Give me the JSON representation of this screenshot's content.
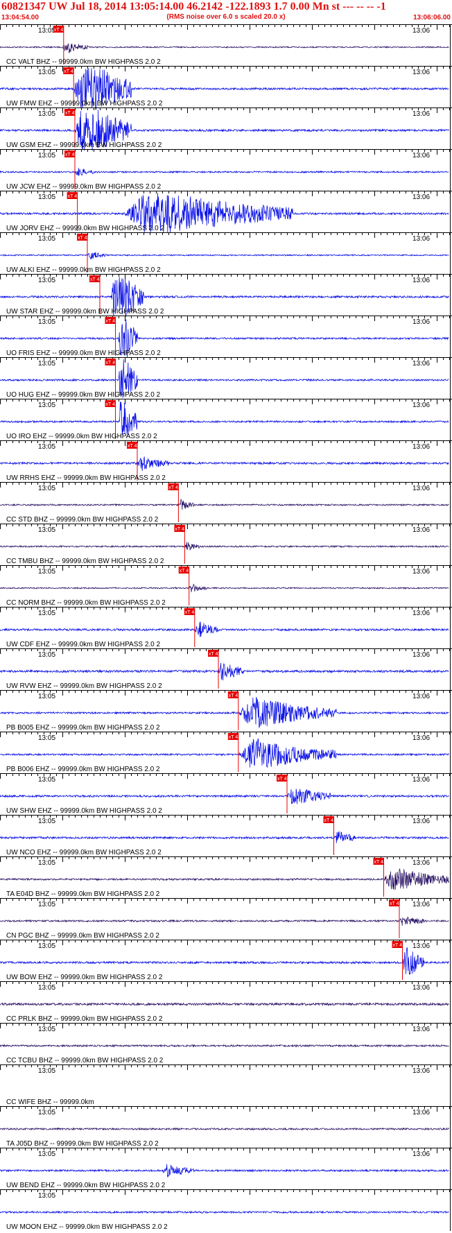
{
  "header": {
    "title": "60821347 UW Jul 18, 2014 13:05:14.00   46.2142 -122.1893  1.7 0.00 Mn st --- -- --   -1",
    "subtitle": "(RMS noise over 6.0 s scaled 20.0 x)",
    "start_time": "13:04:54.00",
    "end_time": "13:06:06.00"
  },
  "colors": {
    "trace_blue": "#0a10e6",
    "trace_dark": "#2a1466",
    "pick_red": "#e60000",
    "header_red": "#e01010",
    "axis": "#000000"
  },
  "chart_data": {
    "type": "line",
    "title": "60821347 UW Jul 18, 2014 13:05:14.00   46.2142 -122.1893  1.7 0.00 Mn st --- -- --   -1",
    "subtitle": "(RMS noise over 6.0 s scaled 20.0 x)",
    "x_start": "13:04:54.00",
    "x_end": "13:06:06.00",
    "xlim_seconds": [
      0,
      72
    ],
    "grid": false,
    "pick_label": "xT 4",
    "traces": [
      {
        "label": "CC VALT BHZ -- 99999.0km BW  HIGHPASS  2.0  2",
        "left_tick": "13:05",
        "right_tick": "13:06",
        "color": "dark",
        "pick_s": 10.2,
        "event_start_s": 10.0,
        "event_end_s": 14.0,
        "event_amp": 0.45,
        "noise": 0.1
      },
      {
        "label": "UW FMW EHZ -- 99999.0km BW  HIGHPASS  2.0  2",
        "left_tick": "13:05",
        "right_tick": "13:06",
        "color": "blue",
        "pick_s": 11.8,
        "event_start_s": 11.8,
        "event_end_s": 21.0,
        "event_amp": 2.6,
        "noise": 0.16
      },
      {
        "label": "UW GSM EHZ -- 99999.0km BW  HIGHPASS  2.0  2",
        "left_tick": "13:05",
        "right_tick": "13:06",
        "color": "blue",
        "pick_s": 12.0,
        "event_start_s": 12.0,
        "event_end_s": 21.0,
        "event_amp": 2.4,
        "noise": 0.16
      },
      {
        "label": "UW JCW EHZ -- 99999.0km BW  HIGHPASS  2.0  2",
        "left_tick": "13:05",
        "right_tick": "13:06",
        "color": "blue",
        "pick_s": 12.0,
        "event_start_s": 12.0,
        "event_end_s": 15.0,
        "event_amp": 0.3,
        "noise": 0.12
      },
      {
        "label": "UW JORV EHZ -- 99999.0km BW  HIGHPASS  2.0  2",
        "left_tick": "13:05",
        "right_tick": "13:06",
        "color": "blue",
        "pick_s": 12.4,
        "event_start_s": 20.0,
        "event_end_s": 47.0,
        "event_amp": 1.8,
        "noise": 0.16
      },
      {
        "label": "UW ALKI EHZ -- 99999.0km BW  HIGHPASS  2.0  2",
        "left_tick": "13:05",
        "right_tick": "13:06",
        "color": "blue",
        "pick_s": 14.0,
        "event_start_s": 14.0,
        "event_end_s": 17.0,
        "event_amp": 0.3,
        "noise": 0.1
      },
      {
        "label": "UW STAR EHZ -- 99999.0km BW  HIGHPASS  2.0  2",
        "left_tick": "13:05",
        "right_tick": "13:06",
        "color": "blue",
        "pick_s": 16.0,
        "event_start_s": 17.8,
        "event_end_s": 23.0,
        "event_amp": 2.6,
        "noise": 0.16
      },
      {
        "label": "UO FRIS EHZ -- 99999.0km BW  HIGHPASS  2.0  2",
        "left_tick": "13:05",
        "right_tick": "13:06",
        "color": "blue",
        "pick_s": 18.5,
        "event_start_s": 19.0,
        "event_end_s": 22.0,
        "event_amp": 2.4,
        "noise": 0.14
      },
      {
        "label": "UO HUG EHZ -- 99999.0km BW  HIGHPASS  2.0  2",
        "left_tick": "13:05",
        "right_tick": "13:06",
        "color": "blue",
        "pick_s": 18.5,
        "event_start_s": 19.0,
        "event_end_s": 22.0,
        "event_amp": 2.4,
        "noise": 0.14
      },
      {
        "label": "UO IRO EHZ -- 99999.0km BW  HIGHPASS  2.0  2",
        "left_tick": "13:05",
        "right_tick": "13:06",
        "color": "blue",
        "pick_s": 18.5,
        "event_start_s": 19.0,
        "event_end_s": 22.0,
        "event_amp": 2.4,
        "noise": 0.14
      },
      {
        "label": "UW RRHS EHZ -- 99999.0km BW  HIGHPASS  2.0  2",
        "left_tick": "13:05",
        "right_tick": "13:06",
        "color": "blue",
        "pick_s": 22.0,
        "event_start_s": 22.0,
        "event_end_s": 27.0,
        "event_amp": 0.5,
        "noise": 0.16
      },
      {
        "label": "CC STD BHZ -- 99999.0km BW  HIGHPASS  2.0  2",
        "left_tick": "13:05",
        "right_tick": "13:06",
        "color": "dark",
        "pick_s": 28.6,
        "event_start_s": 28.6,
        "event_end_s": 31.0,
        "event_amp": 0.4,
        "noise": 0.12
      },
      {
        "label": "CC TMBU BHZ -- 99999.0km BW  HIGHPASS  2.0  2",
        "left_tick": "13:05",
        "right_tick": "13:06",
        "color": "dark",
        "pick_s": 29.6,
        "event_start_s": 29.6,
        "event_end_s": 32.0,
        "event_amp": 0.3,
        "noise": 0.12
      },
      {
        "label": "CC NORM BHZ -- 99999.0km BW  HIGHPASS  2.0  2",
        "left_tick": "13:05",
        "right_tick": "13:06",
        "color": "dark",
        "pick_s": 30.3,
        "event_start_s": 30.3,
        "event_end_s": 33.0,
        "event_amp": 0.3,
        "noise": 0.1
      },
      {
        "label": "UW CDF EHZ -- 99999.0km BW  HIGHPASS  2.0  2",
        "left_tick": "13:05",
        "right_tick": "13:06",
        "color": "blue",
        "pick_s": 31.2,
        "event_start_s": 31.2,
        "event_end_s": 35.0,
        "event_amp": 0.6,
        "noise": 0.16
      },
      {
        "label": "UW RVW EHZ -- 99999.0km BW  HIGHPASS  2.0  2",
        "left_tick": "13:05",
        "right_tick": "13:06",
        "color": "blue",
        "pick_s": 35.0,
        "event_start_s": 35.0,
        "event_end_s": 39.0,
        "event_amp": 0.8,
        "noise": 0.18
      },
      {
        "label": "PB B005 EHZ -- 99999.0km BW  HIGHPASS  2.0  2",
        "left_tick": "13:05",
        "right_tick": "13:06",
        "color": "blue",
        "pick_s": 38.2,
        "event_start_s": 38.2,
        "event_end_s": 54.0,
        "event_amp": 1.2,
        "noise": 0.14
      },
      {
        "label": "PB B006 EHZ -- 99999.0km BW  HIGHPASS  2.0  2",
        "left_tick": "13:05",
        "right_tick": "13:06",
        "color": "blue",
        "pick_s": 38.2,
        "event_start_s": 38.2,
        "event_end_s": 54.0,
        "event_amp": 1.2,
        "noise": 0.14
      },
      {
        "label": "UW SHW EHZ -- 99999.0km BW  HIGHPASS  2.0  2",
        "left_tick": "13:05",
        "right_tick": "13:06",
        "color": "blue",
        "pick_s": 46.0,
        "event_start_s": 46.0,
        "event_end_s": 53.0,
        "event_amp": 0.7,
        "noise": 0.16
      },
      {
        "label": "UW NCO EHZ -- 99999.0km BW  HIGHPASS  2.0  2",
        "left_tick": "13:05",
        "right_tick": "13:06",
        "color": "blue",
        "pick_s": 53.5,
        "event_start_s": 53.5,
        "event_end_s": 57.0,
        "event_amp": 0.5,
        "noise": 0.16
      },
      {
        "label": "TA E04D BHZ -- 99999.0km BW  HIGHPASS  2.0  2",
        "left_tick": "13:05",
        "right_tick": "13:06",
        "color": "dark",
        "pick_s": 61.5,
        "event_start_s": 61.5,
        "event_end_s": 72.0,
        "event_amp": 0.9,
        "noise": 0.14
      },
      {
        "label": "CN PGC BHZ -- 99999.0km BW  HIGHPASS  2.0  2",
        "left_tick": "13:05",
        "right_tick": "13:06",
        "color": "dark",
        "pick_s": 64.0,
        "event_start_s": 64.0,
        "event_end_s": 68.0,
        "event_amp": 0.4,
        "noise": 0.14
      },
      {
        "label": "UW BOW EHZ -- 99999.0km BW  HIGHPASS  2.0  2",
        "left_tick": "13:05",
        "right_tick": "13:06",
        "color": "blue",
        "pick_s": 64.5,
        "event_start_s": 64.5,
        "event_end_s": 68.0,
        "event_amp": 1.3,
        "noise": 0.16
      },
      {
        "label": "CC PRLK BHZ -- 99999.0km BW  HIGHPASS  2.0  2",
        "left_tick": "13:05",
        "right_tick": "13:06",
        "color": "dark",
        "pick_s": null,
        "event_start_s": null,
        "event_end_s": null,
        "event_amp": 0,
        "noise": 0.18
      },
      {
        "label": "CC TCBU BHZ -- 99999.0km BW  HIGHPASS  2.0  2",
        "left_tick": "13:05",
        "right_tick": "13:06",
        "color": "dark",
        "pick_s": null,
        "event_start_s": null,
        "event_end_s": null,
        "event_amp": 0,
        "noise": 0.14
      },
      {
        "label": "CC WIFE BHZ -- 99999.0km",
        "left_tick": "13:05",
        "right_tick": "13:06",
        "color": "dark",
        "pick_s": null,
        "event_start_s": null,
        "event_end_s": null,
        "event_amp": 0,
        "noise": 0.0
      },
      {
        "label": "TA J05D BHZ -- 99999.0km BW  HIGHPASS  2.0  2",
        "left_tick": "13:05",
        "right_tick": "13:06",
        "color": "dark",
        "pick_s": null,
        "event_start_s": null,
        "event_end_s": null,
        "event_amp": 0,
        "noise": 0.14
      },
      {
        "label": "UW BEND EHZ -- 99999.0km BW  HIGHPASS  2.0  2",
        "left_tick": "13:05",
        "right_tick": "13:06",
        "color": "blue",
        "pick_s": null,
        "event_start_s": 26.0,
        "event_end_s": 31.0,
        "event_amp": 0.5,
        "noise": 0.14
      },
      {
        "label": "UW MOON EHZ -- 99999.0km BW  HIGHPASS  2.0  2",
        "left_tick": "13:05",
        "right_tick": "",
        "color": "blue",
        "pick_s": null,
        "event_start_s": null,
        "event_end_s": null,
        "event_amp": 0,
        "noise": 0.14
      }
    ]
  }
}
